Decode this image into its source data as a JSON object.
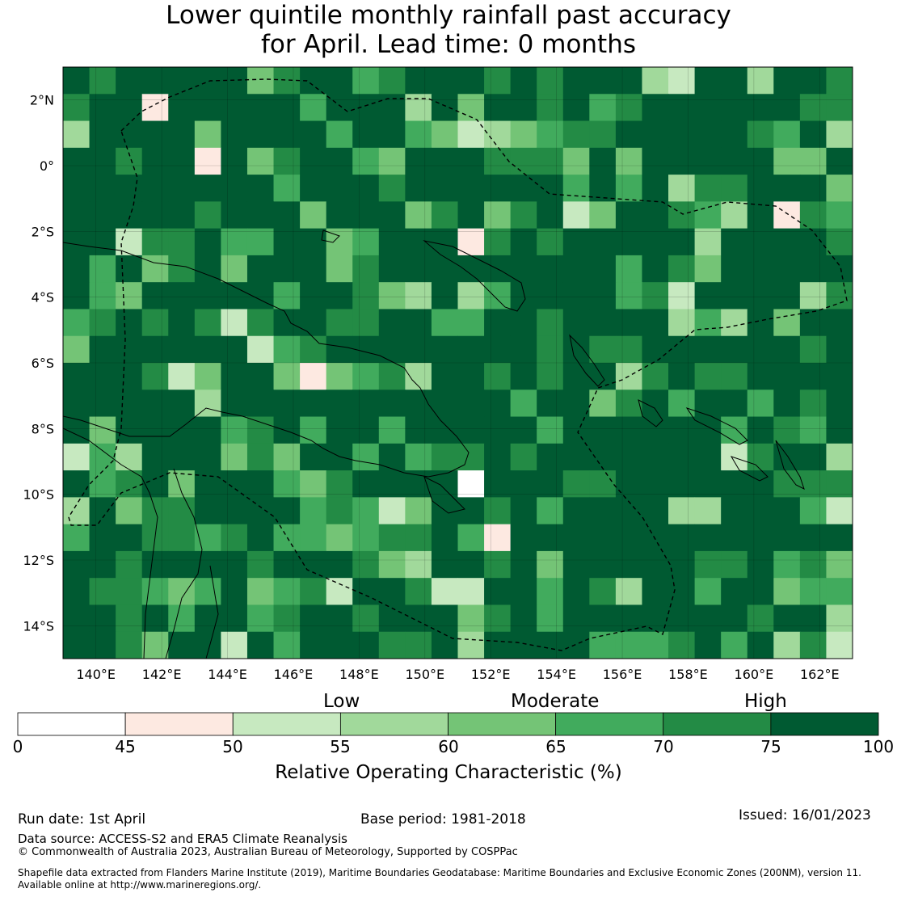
{
  "title": {
    "line1": "Lower quintile monthly rainfall past accuracy",
    "line2": "for April. Lead time: 0 months"
  },
  "map": {
    "lat_labels": [
      "2°N",
      "0°",
      "2°S",
      "4°S",
      "6°S",
      "8°S",
      "10°S",
      "12°S",
      "14°S"
    ],
    "lon_labels": [
      "140°E",
      "142°E",
      "144°E",
      "146°E",
      "148°E",
      "150°E",
      "152°E",
      "154°E",
      "156°E",
      "158°E",
      "160°E",
      "162°E"
    ],
    "lat_range": [
      -15,
      3
    ],
    "lon_range": [
      139,
      163
    ]
  },
  "colorbar": {
    "category_labels": [
      "Low",
      "Moderate",
      "High"
    ],
    "ticks": [
      "0",
      "45",
      "50",
      "55",
      "60",
      "65",
      "70",
      "75",
      "100"
    ],
    "bins": [
      {
        "from": 0,
        "to": 45,
        "color": "#ffffff"
      },
      {
        "from": 45,
        "to": 50,
        "color": "#fde9e1"
      },
      {
        "from": 50,
        "to": 55,
        "color": "#c7e9c0"
      },
      {
        "from": 55,
        "to": 60,
        "color": "#a1d99b"
      },
      {
        "from": 60,
        "to": 65,
        "color": "#74c476"
      },
      {
        "from": 65,
        "to": 70,
        "color": "#41ab5d"
      },
      {
        "from": 70,
        "to": 75,
        "color": "#238b45"
      },
      {
        "from": 75,
        "to": 100,
        "color": "#005a32"
      }
    ],
    "axis_label": "Relative Operating Characteristic (%)"
  },
  "footer": {
    "run_date": "Run date: 1st April",
    "base_period": "Base period: 1981-2018",
    "issued": "Issued: 16/01/2023",
    "data_source": "Data source: ACCESS-S2 and ERA5 Climate Reanalysis",
    "copyright": "© Commonwealth of Australia 2023, Australian Bureau of Meteorology, Supported by COSPPac",
    "shapefile_line1": "Shapefile data extracted from Flanders Marine Institute (2019), Maritime Boundaries Geodatabase: Maritime Boundaries and Exclusive Economic Zones (200NM), version 11.",
    "shapefile_line2": "Available online at http://www.marineregions.org/."
  }
}
